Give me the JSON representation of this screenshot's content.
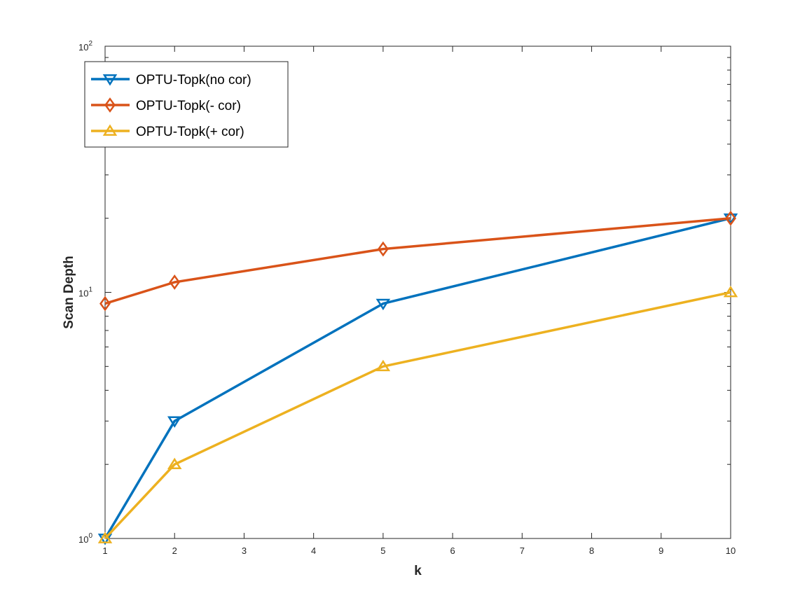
{
  "chart_data": {
    "type": "line",
    "title": "",
    "xlabel": "k",
    "ylabel": "Scan Depth",
    "x": [
      1,
      2,
      5,
      10
    ],
    "xlim": [
      1,
      10
    ],
    "ylim": [
      1,
      100
    ],
    "yscale": "log",
    "grid": false,
    "x_ticks": [
      1,
      2,
      3,
      4,
      5,
      6,
      7,
      8,
      9,
      10
    ],
    "y_ticks": [
      {
        "value": 1,
        "base": "10",
        "exp": "0"
      },
      {
        "value": 10,
        "base": "10",
        "exp": "1"
      },
      {
        "value": 100,
        "base": "10",
        "exp": "2"
      }
    ],
    "legend_position": "top-left",
    "series": [
      {
        "name": "OPTU-Topk(no cor)",
        "values": [
          1,
          3,
          9,
          20
        ],
        "color": "#0072bd",
        "marker": "triangle-down"
      },
      {
        "name": "OPTU-Topk(- cor)",
        "values": [
          9,
          11,
          15,
          20
        ],
        "color": "#d95319",
        "marker": "diamond"
      },
      {
        "name": "OPTU-Topk(+ cor)",
        "values": [
          1,
          2,
          5,
          10
        ],
        "color": "#edb120",
        "marker": "triangle-up"
      }
    ]
  }
}
